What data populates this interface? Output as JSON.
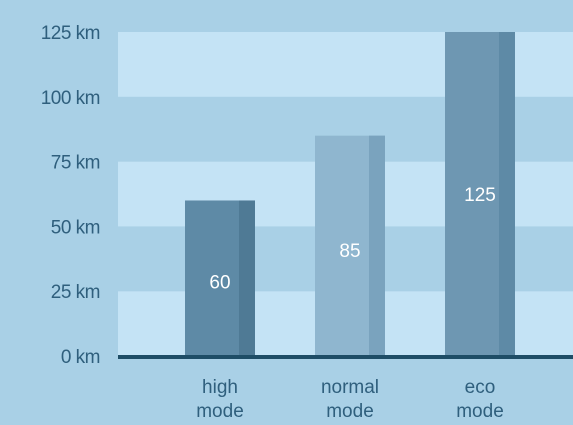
{
  "chart_data": {
    "type": "bar",
    "categories": [
      [
        "high",
        "mode"
      ],
      [
        "normal",
        "mode"
      ],
      [
        "eco",
        "mode"
      ]
    ],
    "values": [
      60,
      85,
      125
    ],
    "data_labels": [
      "60",
      "85",
      "125"
    ],
    "ylim": [
      0,
      125
    ],
    "yticks": [
      {
        "value": 0,
        "label": "0 km"
      },
      {
        "value": 25,
        "label": "25 km"
      },
      {
        "value": 50,
        "label": "50 km"
      },
      {
        "value": 75,
        "label": "75 km"
      },
      {
        "value": 100,
        "label": "100 km"
      },
      {
        "value": 125,
        "label": "125 km"
      }
    ],
    "grid": true,
    "legend": "none"
  },
  "colors": {
    "background": "#a9d0e6",
    "band_light": "#c4e3f5",
    "band_dark": "#a9d0e6",
    "axis": "#1e4d66",
    "text": "#2f5f7d",
    "bar_colors": [
      "#5e8aa6",
      "#8fb6cf",
      "#6e97b2"
    ],
    "bar_shade": [
      "#4f7a95",
      "#7aa3be",
      "#5e8aa6"
    ],
    "label_color": "#ffffff"
  }
}
